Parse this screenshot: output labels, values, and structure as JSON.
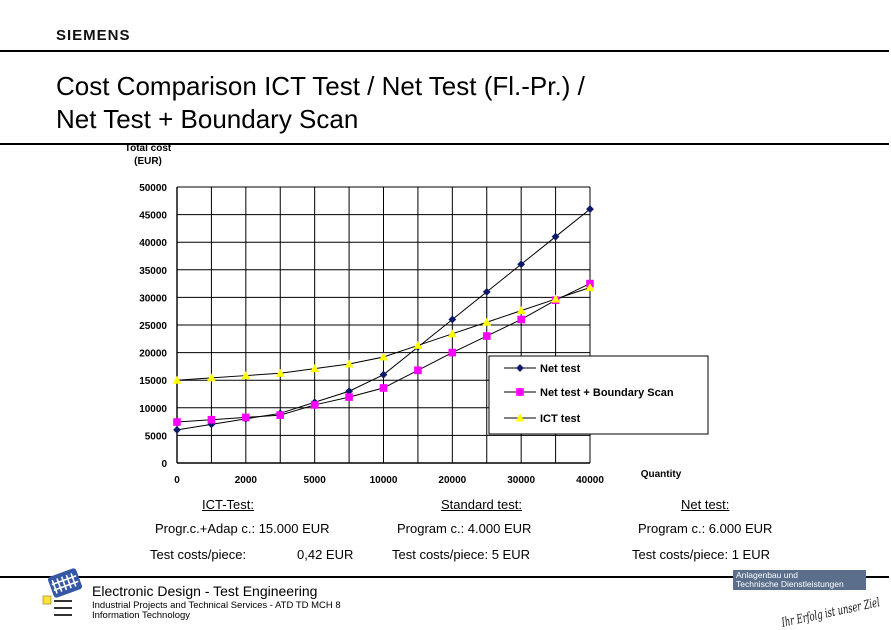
{
  "header": {
    "logo": "SIEMENS",
    "title_line1": "Cost Comparison ICT Test / Net Test (Fl.-Pr.) /",
    "title_line2": "Net Test + Boundary Scan"
  },
  "chart_data": {
    "type": "line",
    "title": "",
    "ylabel_line1": "Total cost",
    "ylabel_line2": "(EUR)",
    "xlabel": "Quantity",
    "ylim": [
      0,
      50000
    ],
    "yticks": [
      "0",
      "5000",
      "10000",
      "15000",
      "20000",
      "25000",
      "30000",
      "35000",
      "40000",
      "45000",
      "50000"
    ],
    "xtick_labels": [
      "0",
      "",
      "2000",
      "",
      "5000",
      "",
      "10000",
      "",
      "20000",
      "",
      "30000",
      "",
      "40000"
    ],
    "x": [
      0,
      1000,
      2000,
      3000,
      5000,
      7000,
      10000,
      15000,
      20000,
      25000,
      30000,
      35000,
      40000
    ],
    "grid": true,
    "legend_position": "right",
    "series": [
      {
        "name": "Net test",
        "color": "#0d1a6b",
        "marker": "diamond",
        "values": [
          6000,
          7000,
          8000,
          9000,
          11000,
          13000,
          16000,
          21000,
          26000,
          31000,
          36000,
          41000,
          46000
        ]
      },
      {
        "name": "Net test + Boundary Scan",
        "color": "#ff00ff",
        "marker": "square",
        "values": [
          7420,
          7840,
          8260,
          8680,
          10520,
          11940,
          13600,
          16800,
          20000,
          23000,
          26000,
          29500,
          32500
        ]
      },
      {
        "name": "ICT test",
        "color": "#ffff00",
        "marker": "triangle",
        "values": [
          15000,
          15420,
          15840,
          16260,
          17100,
          17940,
          19200,
          21300,
          23400,
          25500,
          27600,
          29700,
          31800
        ]
      }
    ]
  },
  "costs": {
    "ict": {
      "heading": "ICT-Test:",
      "programming": "Progr.c.+Adap c.: 15.000 EUR",
      "piece_label": "Test costs/piece:",
      "piece_value": "0,42 EUR"
    },
    "standard": {
      "heading": "Standard test:",
      "programming": "Program c.: 4.000 EUR",
      "piece": "Test costs/piece:  5 EUR"
    },
    "net": {
      "heading": "Net test:",
      "programming": "Program c.: 6.000 EUR",
      "piece": "Test costs/piece: 1 EUR"
    }
  },
  "footer": {
    "title": "Electronic Design - Test Engineering",
    "line1": "Industrial Projects and Technical Services - ATD TD MCH 8",
    "line2": "Information Technology",
    "badge_line1": "Anlagenbau und",
    "badge_line2": "Technische Dienstleistungen",
    "slogan": "Ihr Erfolg ist unser Ziel"
  }
}
